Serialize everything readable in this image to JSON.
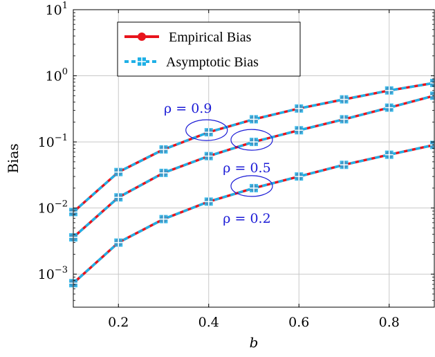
{
  "chart_data": {
    "type": "line",
    "xlabel": "b",
    "ylabel": "Bias",
    "xlim": [
      0.1,
      0.9
    ],
    "ylim_exp": [
      -3.5,
      1
    ],
    "yscale": "log",
    "grid": true,
    "x": [
      0.1,
      0.2,
      0.3,
      0.4,
      0.5,
      0.6,
      0.7,
      0.8,
      0.9
    ],
    "x_ticks": [
      {
        "value": 0.2,
        "label": "0.2"
      },
      {
        "value": 0.4,
        "label": "0.4"
      },
      {
        "value": 0.6,
        "label": "0.6"
      },
      {
        "value": 0.8,
        "label": "0.8"
      }
    ],
    "y_ticks": [
      {
        "exp": 1,
        "base": "10",
        "sup": "1"
      },
      {
        "exp": 0,
        "base": "10",
        "sup": "0"
      },
      {
        "exp": -1,
        "base": "10",
        "sup": "−1"
      },
      {
        "exp": -2,
        "base": "10",
        "sup": "−2"
      },
      {
        "exp": -3,
        "base": "10",
        "sup": "−3"
      }
    ],
    "legend": {
      "placement": "top-left",
      "entries": [
        {
          "label": "Empirical Bias",
          "color": "#e8141c",
          "style": "solid",
          "marker": "circle"
        },
        {
          "label": "Asymptotic Bias",
          "color": "#1fb0e6",
          "style": "dashed",
          "marker": "square-cross"
        }
      ]
    },
    "curves": [
      {
        "rho_label": "ρ = 0.9",
        "values": [
          0.0087,
          0.035,
          0.077,
          0.14,
          0.22,
          0.32,
          0.44,
          0.6,
          0.78
        ]
      },
      {
        "rho_label": "ρ = 0.5",
        "values": [
          0.0036,
          0.0145,
          0.034,
          0.061,
          0.1,
          0.15,
          0.22,
          0.33,
          0.5
        ]
      },
      {
        "rho_label": "ρ = 0.2",
        "values": [
          0.00073,
          0.003,
          0.0068,
          0.0125,
          0.02,
          0.03,
          0.045,
          0.064,
          0.09
        ]
      }
    ],
    "annotations": [
      {
        "text": "ρ = 0.9",
        "x": 0.4,
        "y": 0.14
      },
      {
        "text": "ρ = 0.5",
        "x": 0.5,
        "y": 0.1
      },
      {
        "text": "ρ = 0.2",
        "x": 0.5,
        "y": 0.02
      }
    ]
  }
}
